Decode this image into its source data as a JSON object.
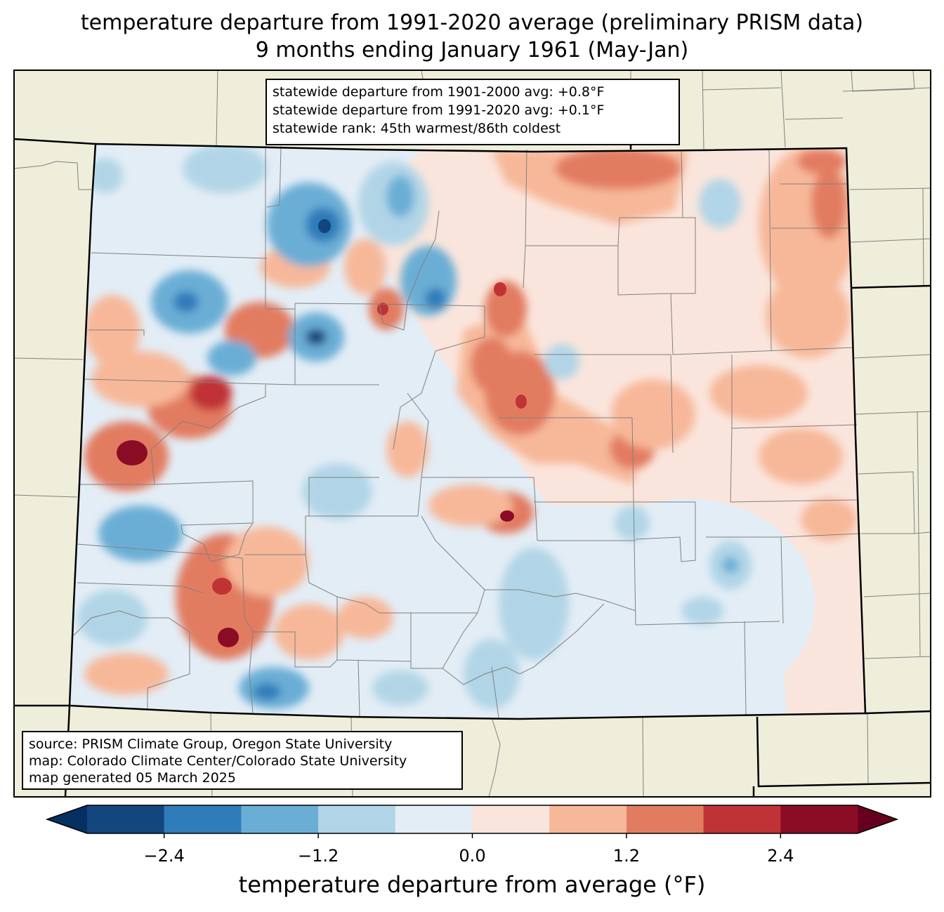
{
  "title": {
    "line1": "temperature departure from 1991-2020 average (preliminary PRISM data)",
    "line2": "9 months ending January 1961 (May-Jan)"
  },
  "stats": {
    "line1": "statewide departure from 1901-2000 avg: +0.8°F",
    "line2": "statewide departure from 1991-2020 avg: +0.1°F",
    "line3": "statewide rank: 45th warmest/86th coldest"
  },
  "source": {
    "line1": "source: PRISM Climate Group, Oregon State University",
    "line2": "map: Colorado Climate Center/Colorado State University",
    "line3": "map generated 05 March 2025"
  },
  "colorbar": {
    "label": "temperature departure from average (°F)",
    "bounds": [
      -3.0,
      3.0
    ],
    "levels": [
      -3.0,
      -2.4,
      -1.8,
      -1.2,
      -0.6,
      0.0,
      0.6,
      1.2,
      1.8,
      2.4,
      3.0
    ],
    "ticks": [
      "−2.4",
      "−1.2",
      "0.0",
      "1.2",
      "2.4"
    ],
    "tick_values": [
      -2.4,
      -1.2,
      0.0,
      1.2,
      2.4
    ],
    "colors": [
      "#14467e",
      "#2f7cba",
      "#6baed5",
      "#b1d5e7",
      "#e3edf6",
      "#fae5dc",
      "#f7b89a",
      "#e27c61",
      "#bf3336",
      "#8a0c25"
    ],
    "under_color": "#053061",
    "over_color": "#67001f"
  },
  "colors": {
    "land": "#efeedb",
    "state_border": "#000000",
    "county_border": "#808080"
  }
}
